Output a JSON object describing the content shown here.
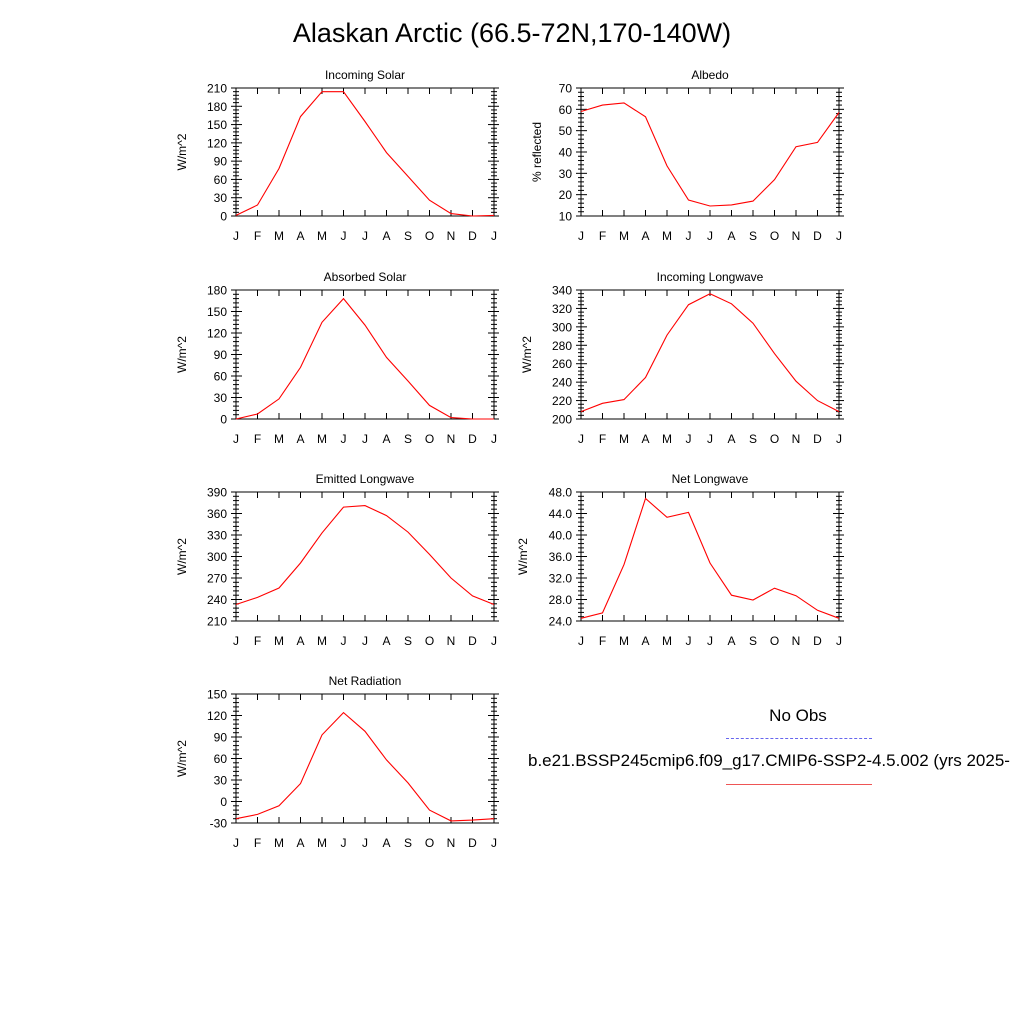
{
  "title": "Alaskan Arctic (66.5-72N,170-140W)",
  "legend": {
    "obs_label": "No Obs",
    "obs_color": "#6666ee",
    "model_label": "b.e21.BSSP245cmip6.f09_g17.CMIP6-SSP2-4.5.002 (yrs 2025-",
    "model_color": "#ff0000"
  },
  "chart_data": [
    {
      "type": "line",
      "title": "Incoming Solar",
      "ylabel": "W/m^2",
      "xlabel": "",
      "categories": [
        "J",
        "F",
        "M",
        "A",
        "M",
        "J",
        "J",
        "A",
        "S",
        "O",
        "N",
        "D",
        "J"
      ],
      "ylim": [
        0,
        210
      ],
      "yticks": [
        "0",
        "30",
        "60",
        "90",
        "120",
        "150",
        "180",
        "210"
      ],
      "series": [
        {
          "values": [
            1,
            18,
            78,
            163,
            204,
            204,
            155,
            104,
            65,
            26,
            4,
            0,
            1
          ]
        }
      ]
    },
    {
      "type": "line",
      "title": "Albedo",
      "ylabel": "% reflected",
      "xlabel": "",
      "categories": [
        "J",
        "F",
        "M",
        "A",
        "M",
        "J",
        "J",
        "A",
        "S",
        "O",
        "N",
        "D",
        "J"
      ],
      "ylim": [
        10,
        70
      ],
      "yticks": [
        "10",
        "20",
        "30",
        "40",
        "50",
        "60",
        "70"
      ],
      "series": [
        {
          "values": [
            59,
            62,
            63,
            56.5,
            33.5,
            17.5,
            14.7,
            15.2,
            17,
            27,
            42.5,
            44.5,
            58.5
          ]
        }
      ]
    },
    {
      "type": "line",
      "title": "Absorbed Solar",
      "ylabel": "W/m^2",
      "xlabel": "",
      "categories": [
        "J",
        "F",
        "M",
        "A",
        "M",
        "J",
        "J",
        "A",
        "S",
        "O",
        "N",
        "D",
        "J"
      ],
      "ylim": [
        0,
        180
      ],
      "yticks": [
        "0",
        "30",
        "60",
        "90",
        "120",
        "150",
        "180"
      ],
      "series": [
        {
          "values": [
            0,
            7,
            28,
            72,
            135,
            168,
            131,
            86,
            53,
            19,
            2,
            0,
            0
          ]
        }
      ]
    },
    {
      "type": "line",
      "title": "Incoming Longwave",
      "ylabel": "W/m^2",
      "xlabel": "",
      "categories": [
        "J",
        "F",
        "M",
        "A",
        "M",
        "J",
        "J",
        "A",
        "S",
        "O",
        "N",
        "D",
        "J"
      ],
      "ylim": [
        200,
        340
      ],
      "yticks": [
        "200",
        "220",
        "240",
        "260",
        "280",
        "300",
        "320",
        "340"
      ],
      "series": [
        {
          "values": [
            208,
            217,
            221,
            245,
            291,
            324,
            336,
            325,
            304,
            271,
            241,
            220,
            208
          ]
        }
      ]
    },
    {
      "type": "line",
      "title": "Emitted Longwave",
      "ylabel": "W/m^2",
      "xlabel": "",
      "categories": [
        "J",
        "F",
        "M",
        "A",
        "M",
        "J",
        "J",
        "A",
        "S",
        "O",
        "N",
        "D",
        "J"
      ],
      "ylim": [
        210,
        390
      ],
      "yticks": [
        "210",
        "240",
        "270",
        "300",
        "330",
        "360",
        "390"
      ],
      "series": [
        {
          "values": [
            233,
            243,
            256,
            291,
            333,
            369,
            371,
            357,
            334,
            303,
            270,
            245,
            233
          ]
        }
      ]
    },
    {
      "type": "line",
      "title": "Net Longwave",
      "ylabel": "W/m^2",
      "xlabel": "",
      "categories": [
        "J",
        "F",
        "M",
        "A",
        "M",
        "J",
        "J",
        "A",
        "S",
        "O",
        "N",
        "D",
        "J"
      ],
      "ylim": [
        24,
        48
      ],
      "yticks": [
        "24.0",
        "28.0",
        "32.0",
        "36.0",
        "40.0",
        "44.0",
        "48.0"
      ],
      "series": [
        {
          "values": [
            24.5,
            25.5,
            34.5,
            46.8,
            43.3,
            44.2,
            34.8,
            28.8,
            27.9,
            30.1,
            28.7,
            26,
            24.5
          ]
        }
      ]
    },
    {
      "type": "line",
      "title": "Net Radiation",
      "ylabel": "W/m^2",
      "xlabel": "",
      "categories": [
        "J",
        "F",
        "M",
        "A",
        "M",
        "J",
        "J",
        "A",
        "S",
        "O",
        "N",
        "D",
        "J"
      ],
      "ylim": [
        -30,
        150
      ],
      "yticks": [
        "-30",
        "0",
        "30",
        "60",
        "90",
        "120",
        "150"
      ],
      "series": [
        {
          "values": [
            -24,
            -18,
            -6,
            25,
            93,
            124,
            98,
            58,
            26,
            -12,
            -27,
            -26,
            -24
          ]
        }
      ]
    }
  ]
}
